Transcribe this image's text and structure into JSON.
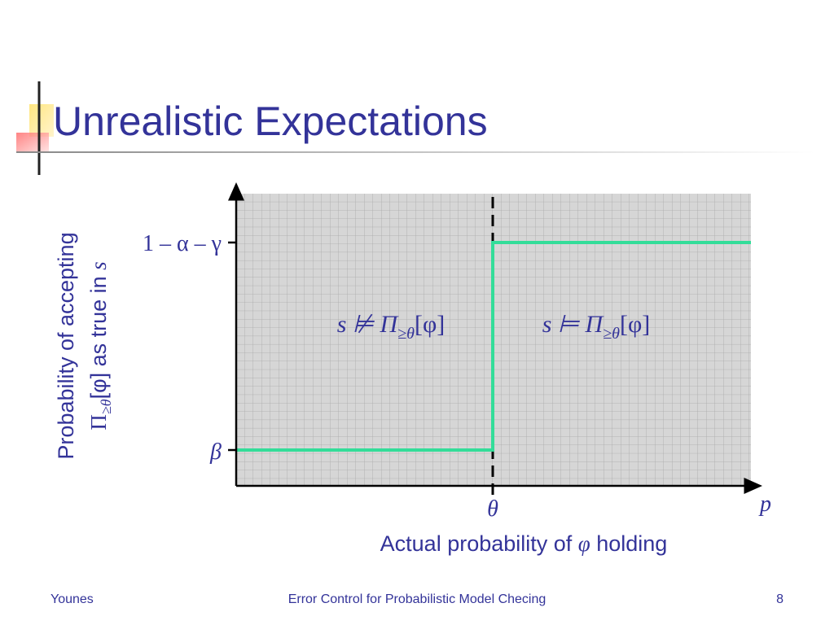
{
  "header": {
    "title": "Unrealistic Expectations"
  },
  "diagram": {
    "y_axis_label": {
      "line1": "Probability of accepting",
      "line2": {
        "pi": "Π",
        "sub": "≥θ",
        "rest": "[φ] as true in ",
        "s": "s"
      }
    },
    "x_axis_label": {
      "before": "Actual probability of ",
      "phi": "φ",
      "after": " holding"
    },
    "y_ticks": [
      "1 – α – γ",
      "β"
    ],
    "x_ticks": [
      "θ",
      "p"
    ],
    "regions": [
      {
        "main": "s ⊭ Π",
        "sub": "≥θ",
        "end": "[φ]"
      },
      {
        "main": "s ⊨ Π",
        "sub": "≥θ",
        "end": "[φ]"
      }
    ]
  },
  "footer": {
    "left": "Younes",
    "center": "Error Control for Probabilistic Model Checing",
    "right": "8"
  }
}
